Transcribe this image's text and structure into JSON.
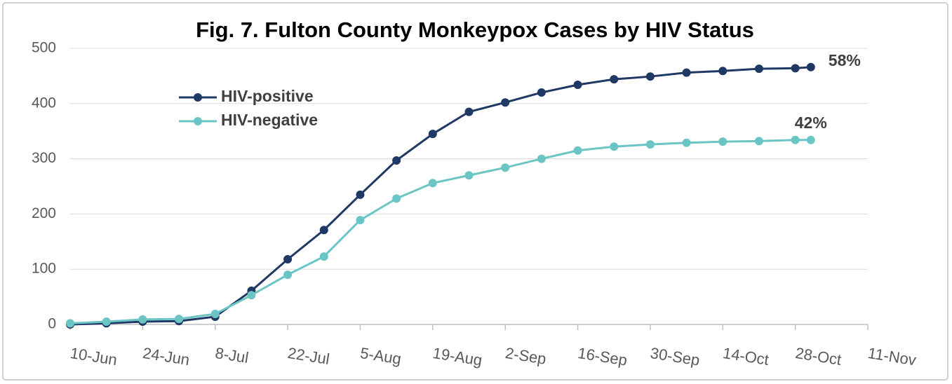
{
  "chart_data": {
    "type": "line",
    "title": "Fig. 7. Fulton County Monkeypox Cases by HIV Status",
    "x": [
      "10-Jun",
      "17-Jun",
      "24-Jun",
      "1-Jul",
      "8-Jul",
      "15-Jul",
      "22-Jul",
      "29-Jul",
      "5-Aug",
      "12-Aug",
      "19-Aug",
      "26-Aug",
      "2-Sep",
      "9-Sep",
      "16-Sep",
      "23-Sep",
      "30-Sep",
      "7-Oct",
      "14-Oct",
      "21-Oct",
      "28-Oct",
      "31-Oct"
    ],
    "series": [
      {
        "name": "HIV-positive",
        "color": "#1f3864",
        "end_label": "58%",
        "values": [
          0,
          2,
          5,
          6,
          14,
          61,
          118,
          171,
          235,
          297,
          345,
          385,
          402,
          420,
          434,
          444,
          449,
          456,
          459,
          463,
          464,
          466
        ]
      },
      {
        "name": "HIV-negative",
        "color": "#6cc5c5",
        "end_label": "42%",
        "values": [
          2,
          5,
          9,
          10,
          19,
          53,
          90,
          123,
          189,
          228,
          256,
          270,
          284,
          300,
          315,
          322,
          326,
          329,
          331,
          332,
          334,
          334
        ]
      }
    ],
    "xlim": [
      "10-Jun",
      "11-Nov"
    ],
    "xticks": [
      "10-Jun",
      "24-Jun",
      "8-Jul",
      "22-Jul",
      "5-Aug",
      "19-Aug",
      "2-Sep",
      "16-Sep",
      "30-Sep",
      "14-Oct",
      "28-Oct",
      "11-Nov"
    ],
    "ylim": [
      0,
      500
    ],
    "yticks": [
      0,
      100,
      200,
      300,
      400,
      500
    ],
    "grid": true,
    "legend": "upper left"
  }
}
